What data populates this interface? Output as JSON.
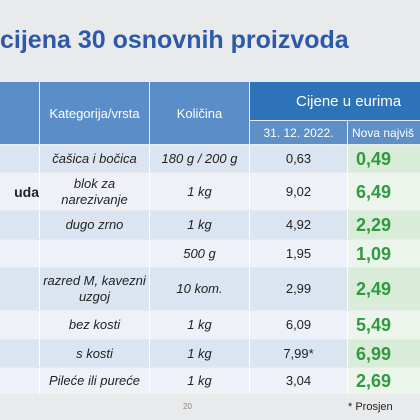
{
  "slide": {
    "title": "cijena 30 osnovnih proizvoda",
    "page_number": "20",
    "footnote": "* Prosjen"
  },
  "table": {
    "headers": {
      "category": "Kategorija/vrsta",
      "quantity": "Količina",
      "prices": "Cijene u eurima",
      "date_col": "31. 12. 2022.",
      "new_col": "Nova najviš"
    },
    "rows": [
      {
        "name": "",
        "category": "čašica i bočica",
        "quantity": "180 g / 200 g",
        "old_price": "0,63",
        "new_price": "0,49"
      },
      {
        "name": "uda",
        "category": "blok za narezivanje",
        "quantity": "1 kg",
        "old_price": "9,02",
        "new_price": "6,49"
      },
      {
        "name": "",
        "category": "dugo zrno",
        "quantity": "1 kg",
        "old_price": "4,92",
        "new_price": "2,29"
      },
      {
        "name": "",
        "category": "",
        "quantity": "500 g",
        "old_price": "1,95",
        "new_price": "1,09"
      },
      {
        "name": "",
        "category": "razred M, kavezni uzgoj",
        "quantity": "10 kom.",
        "old_price": "2,99",
        "new_price": "2,49"
      },
      {
        "name": "",
        "category": "bez kosti",
        "quantity": "1 kg",
        "old_price": "6,09",
        "new_price": "5,49"
      },
      {
        "name": "",
        "category": "s kosti",
        "quantity": "1 kg",
        "old_price": "7,99*",
        "new_price": "6,99"
      },
      {
        "name": "",
        "category": "Pileće ili pureće",
        "quantity": "1 kg",
        "old_price": "3,04",
        "new_price": "2,69"
      }
    ]
  }
}
